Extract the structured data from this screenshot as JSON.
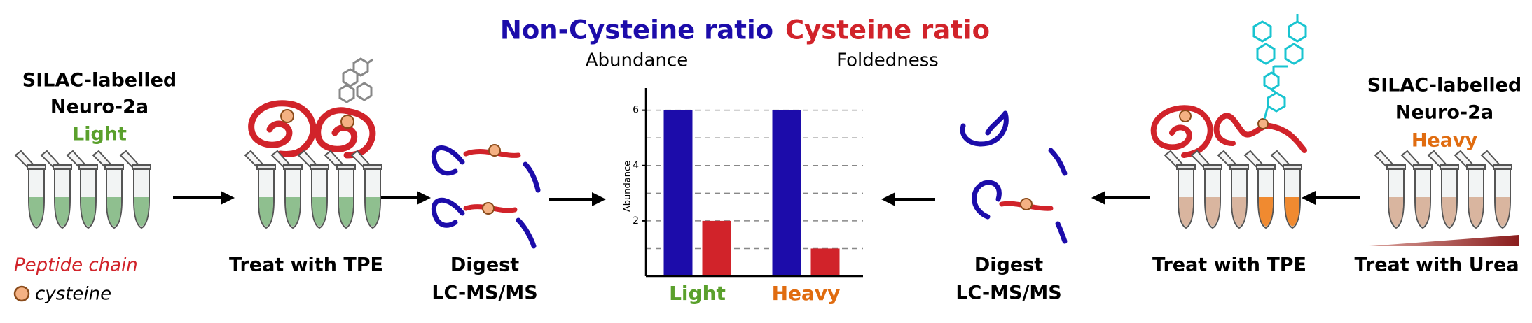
{
  "left": {
    "sample": [
      "SILAC-labelled",
      "Neuro-2a",
      "Light"
    ],
    "treat": "Treat with TPE",
    "digest": [
      "Digest",
      "LC-MS/MS"
    ],
    "key": {
      "peptide": "Peptide chain",
      "cysteine": "cysteine"
    }
  },
  "right": {
    "sample": [
      "SILAC-labelled",
      "Neuro-2a",
      "Heavy"
    ],
    "treat": "Treat with TPE",
    "urea": "Treat with Urea",
    "digest": [
      "Digest",
      "LC-MS/MS"
    ]
  },
  "chart_data": {
    "type": "bar",
    "series": [
      {
        "name": "Non-Cysteine ratio",
        "subtitle": "Abundance",
        "color": "#1c0caa",
        "values": [
          6,
          6
        ]
      },
      {
        "name": "Cysteine ratio",
        "subtitle": "Foldedness",
        "color": "#d1232a",
        "values": [
          2,
          1
        ]
      }
    ],
    "categories": [
      "Light",
      "Heavy"
    ],
    "category_colors": [
      "#5aa02c",
      "#e06c10"
    ],
    "y_label": "Abundance",
    "ylim": [
      0,
      6.8
    ],
    "yticks": [
      2,
      4,
      6
    ],
    "yminor": [
      1,
      3,
      5
    ],
    "grid": true
  }
}
